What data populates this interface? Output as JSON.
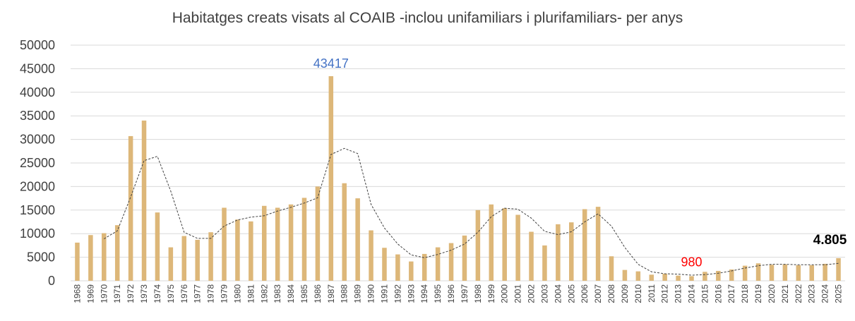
{
  "chart_data": {
    "type": "bar",
    "title": "Habitatges creats visats al COAIB -inclou unifamiliars i plurifamiliars- per anys",
    "xlabel": "",
    "ylabel": "",
    "ylim": [
      0,
      50000
    ],
    "y_ticks": [
      "0",
      "5000",
      "10000",
      "15000",
      "20000",
      "25000",
      "30000",
      "35000",
      "40000",
      "45000",
      "50000"
    ],
    "grid": true,
    "categories": [
      "1968",
      "1969",
      "1970",
      "1971",
      "1972",
      "1973",
      "1974",
      "1975",
      "1976",
      "1977",
      "1978",
      "1979",
      "1980",
      "1981",
      "1982",
      "1983",
      "1984",
      "1985",
      "1986",
      "1987",
      "1988",
      "1989",
      "1990",
      "1991",
      "1992",
      "1993",
      "1994",
      "1995",
      "1996",
      "1997",
      "1998",
      "1999",
      "2000",
      "2001",
      "2002",
      "2003",
      "2004",
      "2005",
      "2006",
      "2007",
      "2008",
      "2009",
      "2010",
      "2011",
      "2012",
      "2013",
      "2014",
      "2015",
      "2016",
      "2017",
      "2018",
      "2019",
      "2020",
      "2021",
      "2022",
      "2023",
      "2024",
      "2025"
    ],
    "values": [
      8100,
      9700,
      10100,
      11800,
      30700,
      34000,
      14500,
      7100,
      9500,
      8700,
      10300,
      15500,
      13000,
      12600,
      15900,
      15500,
      16200,
      17600,
      20000,
      43417,
      20700,
      17500,
      10700,
      7000,
      5600,
      4100,
      5700,
      7100,
      8000,
      9600,
      15000,
      16200,
      15400,
      14000,
      10400,
      7500,
      12000,
      12400,
      15200,
      15700,
      5200,
      2300,
      2000,
      1300,
      1500,
      1100,
      980,
      1900,
      2100,
      2400,
      3200,
      3700,
      3400,
      3500,
      3300,
      3300,
      3600,
      4805
    ],
    "trendline": {
      "type": "moving-average",
      "values": [
        null,
        null,
        8900,
        10600,
        17800,
        25500,
        26400,
        19000,
        10300,
        9000,
        9000,
        11600,
        12900,
        13500,
        13800,
        14800,
        15600,
        16500,
        17600,
        26800,
        28100,
        27000,
        16200,
        11200,
        7800,
        5500,
        4900,
        5600,
        6500,
        7800,
        10300,
        13600,
        15400,
        15200,
        13300,
        10500,
        9800,
        10400,
        12500,
        14200,
        11600,
        7100,
        3500,
        1900,
        1500,
        1400,
        1200,
        1300,
        1600,
        2100,
        2700,
        3200,
        3500,
        3500,
        3400,
        3400,
        3400,
        3700
      ]
    },
    "annotations": [
      {
        "label": "43417",
        "category": "1987",
        "value": 43417,
        "color": "#4472C4"
      },
      {
        "label": "980",
        "category": "2014",
        "value": 980,
        "color": "#FF0000"
      },
      {
        "label": "4.805",
        "category": "2025",
        "value": 4805,
        "color": "#000000"
      }
    ],
    "colors": {
      "bar": "#DDB779",
      "trendline": "#404040",
      "grid": "#D9D9D9",
      "axis_text": "#404040"
    }
  }
}
